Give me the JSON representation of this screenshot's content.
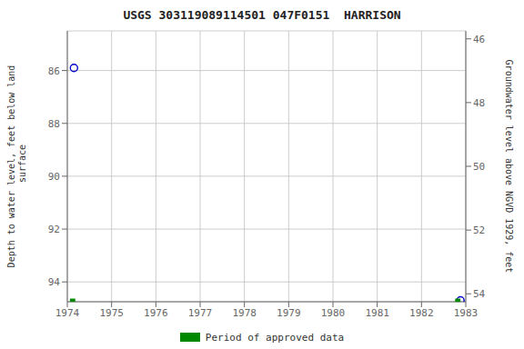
{
  "chart_data": {
    "type": "scatter",
    "title": "USGS 303119089114501 047F0151  HARRISON",
    "ylabel": "Depth to water level, feet below land\n surface",
    "y2label": "Groundwater level above NGVD 1929, feet",
    "xlim": [
      1974,
      1983
    ],
    "xticks": [
      1974,
      1975,
      1976,
      1977,
      1978,
      1979,
      1980,
      1981,
      1982,
      1983
    ],
    "ylim": [
      94.75,
      84.5
    ],
    "yticks": [
      86,
      88,
      90,
      92,
      94
    ],
    "y2lim": [
      54.25,
      45.75
    ],
    "y2ticks": [
      54,
      52,
      50,
      48,
      46
    ],
    "grid": true,
    "legend": "bottom",
    "series": [
      {
        "type": "scatter",
        "color": "#0000cc",
        "marker": "circle",
        "x": [
          1974.15,
          1982.88
        ],
        "values": [
          85.9,
          94.7
        ]
      },
      {
        "name": "Period of approved data",
        "type": "line",
        "color": "#008800",
        "x_start": [
          1974.06,
          1982.76
        ],
        "x_end": [
          1974.18,
          1982.88
        ],
        "values": [
          94.7,
          94.7
        ]
      }
    ]
  }
}
